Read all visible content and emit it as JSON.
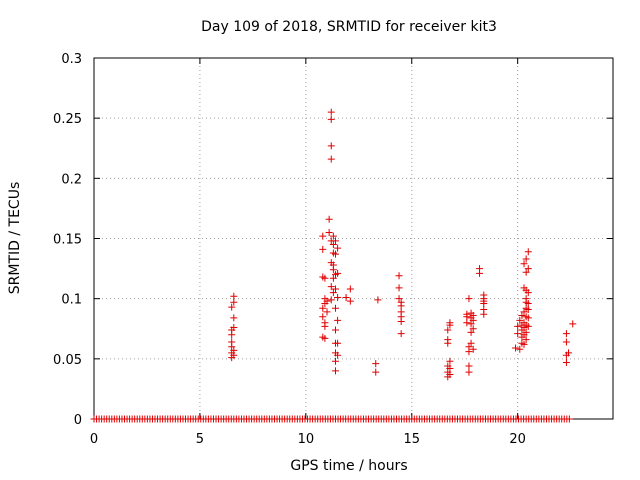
{
  "chart_data": {
    "type": "scatter",
    "title": "Day 109 of 2018, SRMTID for receiver kit3",
    "xlabel": "GPS time / hours",
    "ylabel": "SRMTID / TECUs",
    "xlim": [
      0,
      24.5
    ],
    "ylim": [
      0,
      0.3
    ],
    "x_ticks": [
      0,
      5,
      10,
      15,
      20
    ],
    "y_ticks": [
      0,
      0.05,
      0.1,
      0.15,
      0.2,
      0.25,
      0.3
    ],
    "x_tick_labels": [
      "0",
      "5",
      "10",
      "15",
      "20"
    ],
    "y_tick_labels": [
      "0",
      "0.05",
      "0.1",
      "0.15",
      "0.2",
      "0.25",
      "0.3"
    ],
    "grid": true,
    "marker": "+",
    "marker_color": "#e00000",
    "series": [
      {
        "name": "SRMTID",
        "points": [
          [
            6.5,
            0.051
          ],
          [
            6.5,
            0.055
          ],
          [
            6.5,
            0.06
          ],
          [
            6.5,
            0.064
          ],
          [
            6.5,
            0.07
          ],
          [
            6.5,
            0.074
          ],
          [
            6.5,
            0.093
          ],
          [
            6.6,
            0.053
          ],
          [
            6.6,
            0.057
          ],
          [
            6.6,
            0.076
          ],
          [
            6.6,
            0.084
          ],
          [
            6.6,
            0.097
          ],
          [
            6.6,
            0.102
          ],
          [
            10.8,
            0.068
          ],
          [
            10.8,
            0.085
          ],
          [
            10.8,
            0.092
          ],
          [
            10.8,
            0.118
          ],
          [
            10.8,
            0.141
          ],
          [
            10.8,
            0.152
          ],
          [
            10.9,
            0.067
          ],
          [
            10.9,
            0.077
          ],
          [
            10.9,
            0.08
          ],
          [
            10.9,
            0.096
          ],
          [
            10.9,
            0.1
          ],
          [
            10.9,
            0.117
          ],
          [
            11.0,
            0.089
          ],
          [
            11.0,
            0.098
          ],
          [
            11.1,
            0.155
          ],
          [
            11.1,
            0.166
          ],
          [
            11.2,
            0.255
          ],
          [
            11.2,
            0.249
          ],
          [
            11.2,
            0.227
          ],
          [
            11.2,
            0.216
          ],
          [
            11.2,
            0.148
          ],
          [
            11.2,
            0.13
          ],
          [
            11.2,
            0.11
          ],
          [
            11.2,
            0.099
          ],
          [
            11.3,
            0.152
          ],
          [
            11.3,
            0.145
          ],
          [
            11.3,
            0.138
          ],
          [
            11.3,
            0.128
          ],
          [
            11.3,
            0.124
          ],
          [
            11.3,
            0.117
          ],
          [
            11.3,
            0.105
          ],
          [
            11.4,
            0.148
          ],
          [
            11.4,
            0.137
          ],
          [
            11.4,
            0.12
          ],
          [
            11.4,
            0.108
          ],
          [
            11.4,
            0.092
          ],
          [
            11.4,
            0.074
          ],
          [
            11.4,
            0.063
          ],
          [
            11.4,
            0.055
          ],
          [
            11.4,
            0.048
          ],
          [
            11.4,
            0.04
          ],
          [
            11.5,
            0.142
          ],
          [
            11.5,
            0.121
          ],
          [
            11.5,
            0.101
          ],
          [
            11.5,
            0.082
          ],
          [
            11.5,
            0.063
          ],
          [
            11.5,
            0.053
          ],
          [
            11.9,
            0.101
          ],
          [
            12.1,
            0.098
          ],
          [
            12.1,
            0.108
          ],
          [
            13.3,
            0.039
          ],
          [
            13.3,
            0.046
          ],
          [
            13.4,
            0.099
          ],
          [
            14.4,
            0.119
          ],
          [
            14.4,
            0.109
          ],
          [
            14.4,
            0.1
          ],
          [
            14.5,
            0.097
          ],
          [
            14.5,
            0.094
          ],
          [
            14.5,
            0.089
          ],
          [
            14.5,
            0.085
          ],
          [
            14.5,
            0.081
          ],
          [
            14.5,
            0.071
          ],
          [
            16.7,
            0.035
          ],
          [
            16.7,
            0.039
          ],
          [
            16.7,
            0.044
          ],
          [
            16.7,
            0.063
          ],
          [
            16.7,
            0.066
          ],
          [
            16.7,
            0.074
          ],
          [
            16.8,
            0.037
          ],
          [
            16.8,
            0.042
          ],
          [
            16.8,
            0.048
          ],
          [
            16.8,
            0.078
          ],
          [
            16.8,
            0.08
          ],
          [
            17.6,
            0.08
          ],
          [
            17.6,
            0.085
          ],
          [
            17.6,
            0.087
          ],
          [
            17.7,
            0.039
          ],
          [
            17.7,
            0.044
          ],
          [
            17.7,
            0.056
          ],
          [
            17.7,
            0.06
          ],
          [
            17.7,
            0.1
          ],
          [
            17.8,
            0.063
          ],
          [
            17.8,
            0.072
          ],
          [
            17.8,
            0.079
          ],
          [
            17.8,
            0.084
          ],
          [
            17.8,
            0.088
          ],
          [
            17.9,
            0.058
          ],
          [
            17.9,
            0.075
          ],
          [
            17.9,
            0.082
          ],
          [
            17.9,
            0.086
          ],
          [
            18.2,
            0.121
          ],
          [
            18.2,
            0.125
          ],
          [
            18.4,
            0.087
          ],
          [
            18.4,
            0.091
          ],
          [
            18.4,
            0.096
          ],
          [
            18.4,
            0.098
          ],
          [
            18.4,
            0.1
          ],
          [
            18.4,
            0.103
          ],
          [
            19.9,
            0.059
          ],
          [
            20.0,
            0.071
          ],
          [
            20.0,
            0.077
          ],
          [
            20.1,
            0.058
          ],
          [
            20.1,
            0.082
          ],
          [
            20.2,
            0.063
          ],
          [
            20.2,
            0.068
          ],
          [
            20.2,
            0.074
          ],
          [
            20.2,
            0.078
          ],
          [
            20.2,
            0.086
          ],
          [
            20.3,
            0.062
          ],
          [
            20.3,
            0.07
          ],
          [
            20.3,
            0.076
          ],
          [
            20.3,
            0.08
          ],
          [
            20.3,
            0.089
          ],
          [
            20.3,
            0.109
          ],
          [
            20.3,
            0.129
          ],
          [
            20.4,
            0.066
          ],
          [
            20.4,
            0.072
          ],
          [
            20.4,
            0.078
          ],
          [
            20.4,
            0.085
          ],
          [
            20.4,
            0.092
          ],
          [
            20.4,
            0.097
          ],
          [
            20.4,
            0.1
          ],
          [
            20.4,
            0.107
          ],
          [
            20.4,
            0.122
          ],
          [
            20.4,
            0.133
          ],
          [
            20.5,
            0.077
          ],
          [
            20.5,
            0.084
          ],
          [
            20.5,
            0.091
          ],
          [
            20.5,
            0.096
          ],
          [
            20.5,
            0.105
          ],
          [
            20.5,
            0.125
          ],
          [
            20.5,
            0.139
          ],
          [
            22.3,
            0.047
          ],
          [
            22.3,
            0.053
          ],
          [
            22.3,
            0.064
          ],
          [
            22.3,
            0.071
          ],
          [
            22.4,
            0.055
          ],
          [
            22.6,
            0.079
          ]
        ],
        "zero_runs": [
          [
            0.0,
            22.5
          ]
        ],
        "zero_step": 0.12
      }
    ]
  }
}
